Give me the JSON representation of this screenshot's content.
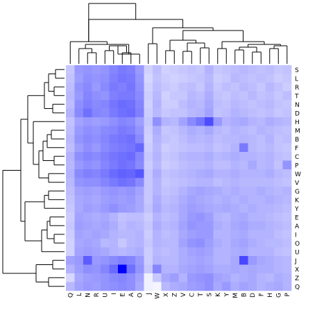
{
  "chart_data": {
    "type": "heatmap",
    "title": "",
    "xlabel": "",
    "ylabel": "",
    "columns": [
      "Q",
      "L",
      "N",
      "R",
      "U",
      "I",
      "E",
      "A",
      "O",
      "J",
      "W",
      "X",
      "Z",
      "V",
      "C",
      "T",
      "S",
      "K",
      "Y",
      "M",
      "B",
      "D",
      "F",
      "H",
      "G",
      "P"
    ],
    "rows": [
      "S",
      "L",
      "R",
      "T",
      "N",
      "D",
      "H",
      "M",
      "B",
      "F",
      "C",
      "P",
      "W",
      "V",
      "G",
      "K",
      "Y",
      "E",
      "A",
      "I",
      "O",
      "U",
      "J",
      "X",
      "Z",
      "Q"
    ],
    "color_low": "#ffffff",
    "color_high": "#0000ff",
    "value_range": [
      0,
      1
    ],
    "values": [
      [
        0.22,
        0.4,
        0.42,
        0.4,
        0.42,
        0.48,
        0.52,
        0.5,
        0.4,
        0.18,
        0.26,
        0.18,
        0.2,
        0.22,
        0.24,
        0.22,
        0.3,
        0.22,
        0.24,
        0.26,
        0.28,
        0.26,
        0.24,
        0.26,
        0.22,
        0.24
      ],
      [
        0.24,
        0.38,
        0.44,
        0.42,
        0.44,
        0.5,
        0.54,
        0.52,
        0.42,
        0.16,
        0.24,
        0.2,
        0.18,
        0.2,
        0.22,
        0.24,
        0.28,
        0.2,
        0.22,
        0.28,
        0.26,
        0.24,
        0.26,
        0.24,
        0.2,
        0.22
      ],
      [
        0.26,
        0.42,
        0.46,
        0.4,
        0.46,
        0.52,
        0.5,
        0.54,
        0.44,
        0.18,
        0.26,
        0.22,
        0.2,
        0.24,
        0.26,
        0.22,
        0.3,
        0.22,
        0.26,
        0.24,
        0.28,
        0.26,
        0.22,
        0.28,
        0.24,
        0.2
      ],
      [
        0.28,
        0.4,
        0.48,
        0.44,
        0.42,
        0.5,
        0.52,
        0.52,
        0.46,
        0.2,
        0.28,
        0.18,
        0.22,
        0.22,
        0.28,
        0.26,
        0.32,
        0.24,
        0.22,
        0.26,
        0.24,
        0.28,
        0.24,
        0.26,
        0.22,
        0.26
      ],
      [
        0.26,
        0.44,
        0.5,
        0.46,
        0.48,
        0.54,
        0.58,
        0.56,
        0.48,
        0.18,
        0.3,
        0.2,
        0.2,
        0.26,
        0.3,
        0.28,
        0.34,
        0.26,
        0.24,
        0.28,
        0.26,
        0.24,
        0.26,
        0.28,
        0.24,
        0.22
      ],
      [
        0.3,
        0.46,
        0.56,
        0.48,
        0.46,
        0.52,
        0.56,
        0.58,
        0.5,
        0.2,
        0.28,
        0.22,
        0.24,
        0.24,
        0.28,
        0.3,
        0.36,
        0.24,
        0.26,
        0.3,
        0.28,
        0.26,
        0.24,
        0.26,
        0.22,
        0.24
      ],
      [
        0.24,
        0.36,
        0.4,
        0.38,
        0.4,
        0.44,
        0.48,
        0.46,
        0.38,
        0.22,
        0.44,
        0.3,
        0.28,
        0.36,
        0.46,
        0.54,
        0.7,
        0.4,
        0.3,
        0.32,
        0.34,
        0.3,
        0.28,
        0.32,
        0.3,
        0.28
      ],
      [
        0.26,
        0.4,
        0.44,
        0.42,
        0.46,
        0.48,
        0.52,
        0.5,
        0.42,
        0.2,
        0.32,
        0.22,
        0.24,
        0.28,
        0.32,
        0.3,
        0.34,
        0.28,
        0.26,
        0.3,
        0.28,
        0.26,
        0.3,
        0.28,
        0.26,
        0.24
      ],
      [
        0.28,
        0.42,
        0.46,
        0.44,
        0.48,
        0.52,
        0.54,
        0.56,
        0.46,
        0.18,
        0.3,
        0.24,
        0.22,
        0.26,
        0.3,
        0.28,
        0.3,
        0.26,
        0.28,
        0.28,
        0.3,
        0.28,
        0.26,
        0.3,
        0.24,
        0.26
      ],
      [
        0.26,
        0.38,
        0.44,
        0.4,
        0.46,
        0.5,
        0.52,
        0.54,
        0.6,
        0.2,
        0.28,
        0.2,
        0.22,
        0.24,
        0.26,
        0.26,
        0.28,
        0.24,
        0.26,
        0.3,
        0.52,
        0.28,
        0.26,
        0.28,
        0.24,
        0.22
      ],
      [
        0.3,
        0.44,
        0.48,
        0.46,
        0.5,
        0.54,
        0.56,
        0.58,
        0.48,
        0.22,
        0.3,
        0.22,
        0.24,
        0.28,
        0.3,
        0.3,
        0.32,
        0.28,
        0.3,
        0.32,
        0.3,
        0.3,
        0.28,
        0.3,
        0.26,
        0.24
      ],
      [
        0.28,
        0.4,
        0.44,
        0.42,
        0.48,
        0.52,
        0.56,
        0.54,
        0.46,
        0.2,
        0.28,
        0.2,
        0.22,
        0.26,
        0.28,
        0.28,
        0.3,
        0.26,
        0.26,
        0.3,
        0.28,
        0.34,
        0.28,
        0.3,
        0.24,
        0.42
      ],
      [
        0.3,
        0.46,
        0.5,
        0.48,
        0.52,
        0.58,
        0.62,
        0.6,
        0.66,
        0.22,
        0.32,
        0.24,
        0.26,
        0.28,
        0.3,
        0.32,
        0.34,
        0.3,
        0.3,
        0.32,
        0.3,
        0.3,
        0.3,
        0.32,
        0.28,
        0.26
      ],
      [
        0.28,
        0.42,
        0.44,
        0.44,
        0.48,
        0.52,
        0.56,
        0.54,
        0.46,
        0.22,
        0.3,
        0.22,
        0.24,
        0.26,
        0.28,
        0.3,
        0.3,
        0.26,
        0.28,
        0.3,
        0.28,
        0.28,
        0.28,
        0.28,
        0.26,
        0.24
      ],
      [
        0.26,
        0.36,
        0.38,
        0.36,
        0.4,
        0.42,
        0.4,
        0.42,
        0.36,
        0.22,
        0.3,
        0.24,
        0.26,
        0.3,
        0.34,
        0.36,
        0.34,
        0.32,
        0.3,
        0.32,
        0.3,
        0.3,
        0.32,
        0.3,
        0.28,
        0.3
      ],
      [
        0.24,
        0.34,
        0.36,
        0.34,
        0.38,
        0.4,
        0.38,
        0.4,
        0.34,
        0.22,
        0.32,
        0.26,
        0.28,
        0.32,
        0.36,
        0.34,
        0.32,
        0.3,
        0.32,
        0.3,
        0.32,
        0.3,
        0.3,
        0.32,
        0.3,
        0.28
      ],
      [
        0.22,
        0.34,
        0.38,
        0.36,
        0.4,
        0.44,
        0.4,
        0.38,
        0.34,
        0.24,
        0.34,
        0.28,
        0.3,
        0.34,
        0.38,
        0.36,
        0.34,
        0.32,
        0.34,
        0.32,
        0.3,
        0.32,
        0.3,
        0.3,
        0.28,
        0.26
      ],
      [
        0.2,
        0.36,
        0.34,
        0.32,
        0.34,
        0.3,
        0.24,
        0.26,
        0.26,
        0.2,
        0.3,
        0.26,
        0.28,
        0.34,
        0.4,
        0.42,
        0.38,
        0.3,
        0.28,
        0.32,
        0.34,
        0.3,
        0.3,
        0.28,
        0.26,
        0.24
      ],
      [
        0.22,
        0.38,
        0.36,
        0.34,
        0.36,
        0.32,
        0.26,
        0.3,
        0.28,
        0.22,
        0.32,
        0.28,
        0.3,
        0.36,
        0.42,
        0.4,
        0.4,
        0.32,
        0.3,
        0.34,
        0.36,
        0.32,
        0.32,
        0.3,
        0.28,
        0.26
      ],
      [
        0.2,
        0.36,
        0.34,
        0.36,
        0.34,
        0.3,
        0.28,
        0.28,
        0.3,
        0.2,
        0.3,
        0.26,
        0.28,
        0.34,
        0.38,
        0.4,
        0.4,
        0.3,
        0.3,
        0.32,
        0.34,
        0.3,
        0.3,
        0.3,
        0.26,
        0.24
      ],
      [
        0.18,
        0.34,
        0.36,
        0.34,
        0.28,
        0.3,
        0.22,
        0.28,
        0.3,
        0.22,
        0.3,
        0.28,
        0.28,
        0.36,
        0.42,
        0.44,
        0.38,
        0.32,
        0.3,
        0.34,
        0.36,
        0.32,
        0.3,
        0.28,
        0.28,
        0.26
      ],
      [
        0.18,
        0.36,
        0.38,
        0.36,
        0.34,
        0.3,
        0.28,
        0.3,
        0.32,
        0.2,
        0.28,
        0.26,
        0.28,
        0.32,
        0.36,
        0.38,
        0.36,
        0.3,
        0.3,
        0.32,
        0.34,
        0.3,
        0.3,
        0.3,
        0.26,
        0.24
      ],
      [
        0.36,
        0.4,
        0.64,
        0.4,
        0.42,
        0.46,
        0.5,
        0.48,
        0.4,
        0.2,
        0.3,
        0.28,
        0.28,
        0.32,
        0.34,
        0.36,
        0.34,
        0.3,
        0.3,
        0.34,
        0.72,
        0.4,
        0.34,
        0.32,
        0.3,
        0.28
      ],
      [
        0.3,
        0.38,
        0.44,
        0.42,
        0.48,
        0.58,
        1.0,
        0.56,
        0.42,
        0.22,
        0.48,
        0.3,
        0.3,
        0.34,
        0.36,
        0.38,
        0.36,
        0.32,
        0.32,
        0.34,
        0.32,
        0.34,
        0.32,
        0.32,
        0.3,
        0.28
      ],
      [
        0.16,
        0.34,
        0.38,
        0.4,
        0.42,
        0.46,
        0.48,
        0.44,
        0.36,
        0.06,
        0.22,
        0.34,
        0.38,
        0.3,
        0.4,
        0.42,
        0.44,
        0.36,
        0.34,
        0.3,
        0.32,
        0.34,
        0.3,
        0.28,
        0.32,
        0.3
      ],
      [
        0.28,
        0.36,
        0.4,
        0.38,
        0.42,
        0.44,
        0.46,
        0.44,
        0.34,
        0.06,
        0.04,
        0.28,
        0.32,
        0.34,
        0.38,
        0.4,
        0.44,
        0.34,
        0.4,
        0.32,
        0.36,
        0.34,
        0.3,
        0.32,
        0.34,
        0.3
      ]
    ],
    "column_dendrogram": [
      [
        1,
        2
      ],
      [
        3,
        4
      ],
      [
        -1,
        -2
      ],
      [
        5,
        6
      ],
      [
        -4,
        -3
      ],
      [
        -6,
        7
      ],
      [
        -5,
        -7
      ],
      [
        -8,
        9
      ],
      [
        10,
        11
      ],
      [
        12,
        13
      ],
      [
        14,
        15
      ],
      [
        -9,
        16
      ],
      [
        -10,
        -11
      ],
      [
        18,
        19
      ],
      [
        -13,
        -14
      ],
      [
        20,
        21
      ],
      [
        22,
        23
      ],
      [
        -15,
        -16
      ],
      [
        -17,
        -18
      ],
      [
        -12,
        24
      ],
      [
        25,
        26
      ],
      [
        27,
        28
      ],
      [
        -19,
        -20
      ],
      [
        -21,
        -22
      ],
      [
        -23,
        -24
      ],
      [
        -25,
        -26
      ]
    ],
    "row_dendrogram": [
      [
        1,
        2
      ],
      [
        3,
        4
      ],
      [
        5,
        6
      ],
      [
        7,
        8
      ],
      [
        9,
        10
      ],
      [
        -1,
        11
      ],
      [
        12,
        13
      ],
      [
        -2,
        -3
      ],
      [
        -4,
        -5
      ],
      [
        14,
        15
      ],
      [
        16,
        17
      ],
      [
        -6,
        -7
      ],
      [
        18,
        19
      ],
      [
        -8,
        -9
      ],
      [
        -10,
        20
      ],
      [
        -11,
        -12
      ],
      [
        -13,
        21
      ],
      [
        -14,
        -15
      ],
      [
        -16,
        -17
      ],
      [
        -18,
        22
      ],
      [
        -19,
        23
      ],
      [
        -20,
        -21
      ],
      [
        -22,
        24
      ],
      [
        -23,
        25
      ],
      [
        -24,
        -25
      ],
      [
        -26,
        0
      ]
    ]
  }
}
